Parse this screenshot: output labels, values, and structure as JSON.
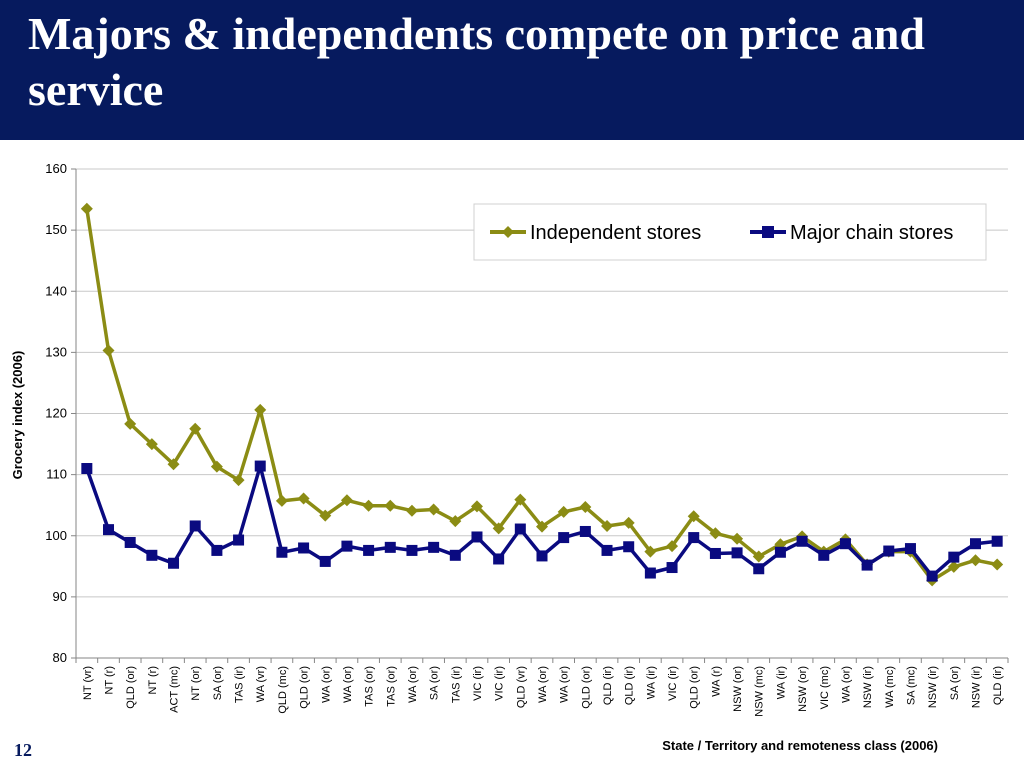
{
  "slide": {
    "title": "Majors & independents compete on price and service",
    "page_number": "12"
  },
  "colors": {
    "header_bg": "#061a5e",
    "independent": "#8b8c14",
    "major": "#0a0a80"
  },
  "chart_data": {
    "type": "line",
    "xlabel": "State / Territory and remoteness class (2006)",
    "ylabel": "Grocery index (2006)",
    "ylim": [
      80,
      160
    ],
    "yticks": [
      80,
      90,
      100,
      110,
      120,
      130,
      140,
      150,
      160
    ],
    "grid": "horizontal",
    "legend_position": "top-right",
    "categories": [
      "NT (vr)",
      "NT (r)",
      "QLD (or)",
      "NT (r)",
      "ACT (mc)",
      "NT (or)",
      "SA (or)",
      "TAS (ir)",
      "WA (vr)",
      "QLD (mc)",
      "QLD (or)",
      "WA (or)",
      "WA (or)",
      "TAS (or)",
      "TAS (or)",
      "WA (or)",
      "SA (or)",
      "TAS (ir)",
      "VIC (ir)",
      "VIC (ir)",
      "QLD (vr)",
      "WA (or)",
      "WA (or)",
      "QLD (or)",
      "QLD (ir)",
      "QLD (ir)",
      "WA (ir)",
      "VIC (ir)",
      "QLD (or)",
      "WA (r)",
      "NSW (or)",
      "NSW (mc)",
      "WA (ir)",
      "NSW (or)",
      "VIC (mc)",
      "WA (or)",
      "NSW (ir)",
      "WA (mc)",
      "SA (mc)",
      "NSW (ir)",
      "SA (or)",
      "NSW (ir)",
      "QLD (ir)"
    ],
    "series": [
      {
        "name": "Independent stores",
        "marker": "diamond",
        "values": [
          153.5,
          130.3,
          118.3,
          115.0,
          111.7,
          117.5,
          111.3,
          109.1,
          120.6,
          105.7,
          106.1,
          103.3,
          105.8,
          104.9,
          104.9,
          104.1,
          104.3,
          102.4,
          104.8,
          101.2,
          105.9,
          101.5,
          103.9,
          104.7,
          101.6,
          102.1,
          97.4,
          98.3,
          103.2,
          100.4,
          99.5,
          96.6,
          98.6,
          99.9,
          97.4,
          99.4,
          95.3,
          97.4,
          97.4,
          92.7,
          94.9,
          96.0,
          95.3
        ]
      },
      {
        "name": "Major chain stores",
        "marker": "square",
        "values": [
          111.0,
          101.0,
          98.9,
          96.8,
          95.5,
          101.6,
          97.6,
          99.3,
          111.4,
          97.3,
          98.0,
          95.8,
          98.3,
          97.6,
          98.1,
          97.6,
          98.1,
          96.8,
          99.8,
          96.2,
          101.1,
          96.7,
          99.7,
          100.7,
          97.6,
          98.2,
          93.9,
          94.8,
          99.7,
          97.1,
          97.2,
          94.6,
          97.3,
          99.1,
          96.8,
          98.7,
          95.2,
          97.5,
          97.9,
          93.4,
          96.5,
          98.7,
          99.1
        ]
      }
    ]
  }
}
